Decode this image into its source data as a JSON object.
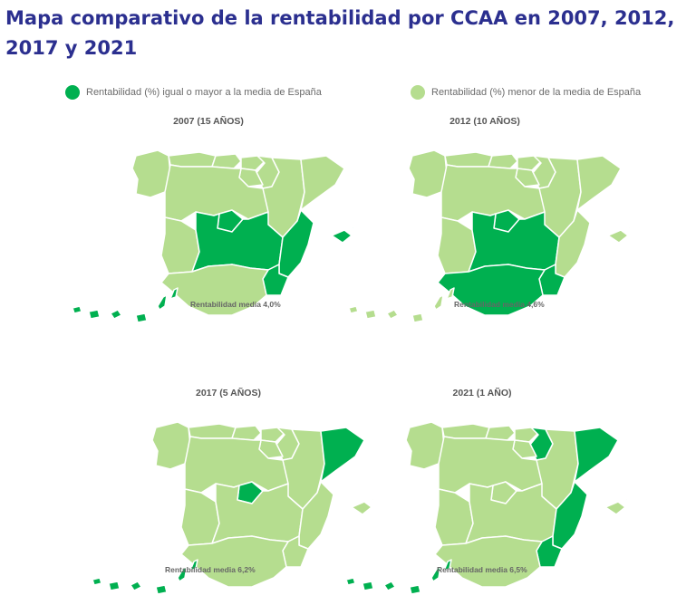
{
  "title": "Mapa comparativo de la rentabilidad por CCAA en 2007, 2012, 2017 y 2021",
  "legend": {
    "above": {
      "label": "Rentabilidad (%) igual o mayor a la media de España",
      "color": "#00b050"
    },
    "below": {
      "label": "Rentabilidad (%) menor de la media de España",
      "color": "#b5dd8f"
    }
  },
  "panels": [
    {
      "title": "2007 (15 AÑOS)",
      "average_label": "Rentabilidad media  4,0%",
      "above": [
        "castilla-la-mancha",
        "madrid",
        "valencia",
        "murcia",
        "baleares",
        "canarias"
      ]
    },
    {
      "title": "2012 (10 AÑOS)",
      "average_label": "Rentabilidad media  4,6%",
      "above": [
        "castilla-la-mancha",
        "madrid",
        "andalucia",
        "murcia"
      ]
    },
    {
      "title": "2017 (5 AÑOS)",
      "average_label": "Rentabilidad media 6,2%",
      "above": [
        "madrid",
        "cataluna",
        "canarias"
      ]
    },
    {
      "title": "2021 (1 AÑO)",
      "average_label": "Rentabilidad media  6,5%",
      "above": [
        "navarra",
        "cataluna",
        "valencia",
        "murcia",
        "canarias"
      ]
    }
  ]
}
